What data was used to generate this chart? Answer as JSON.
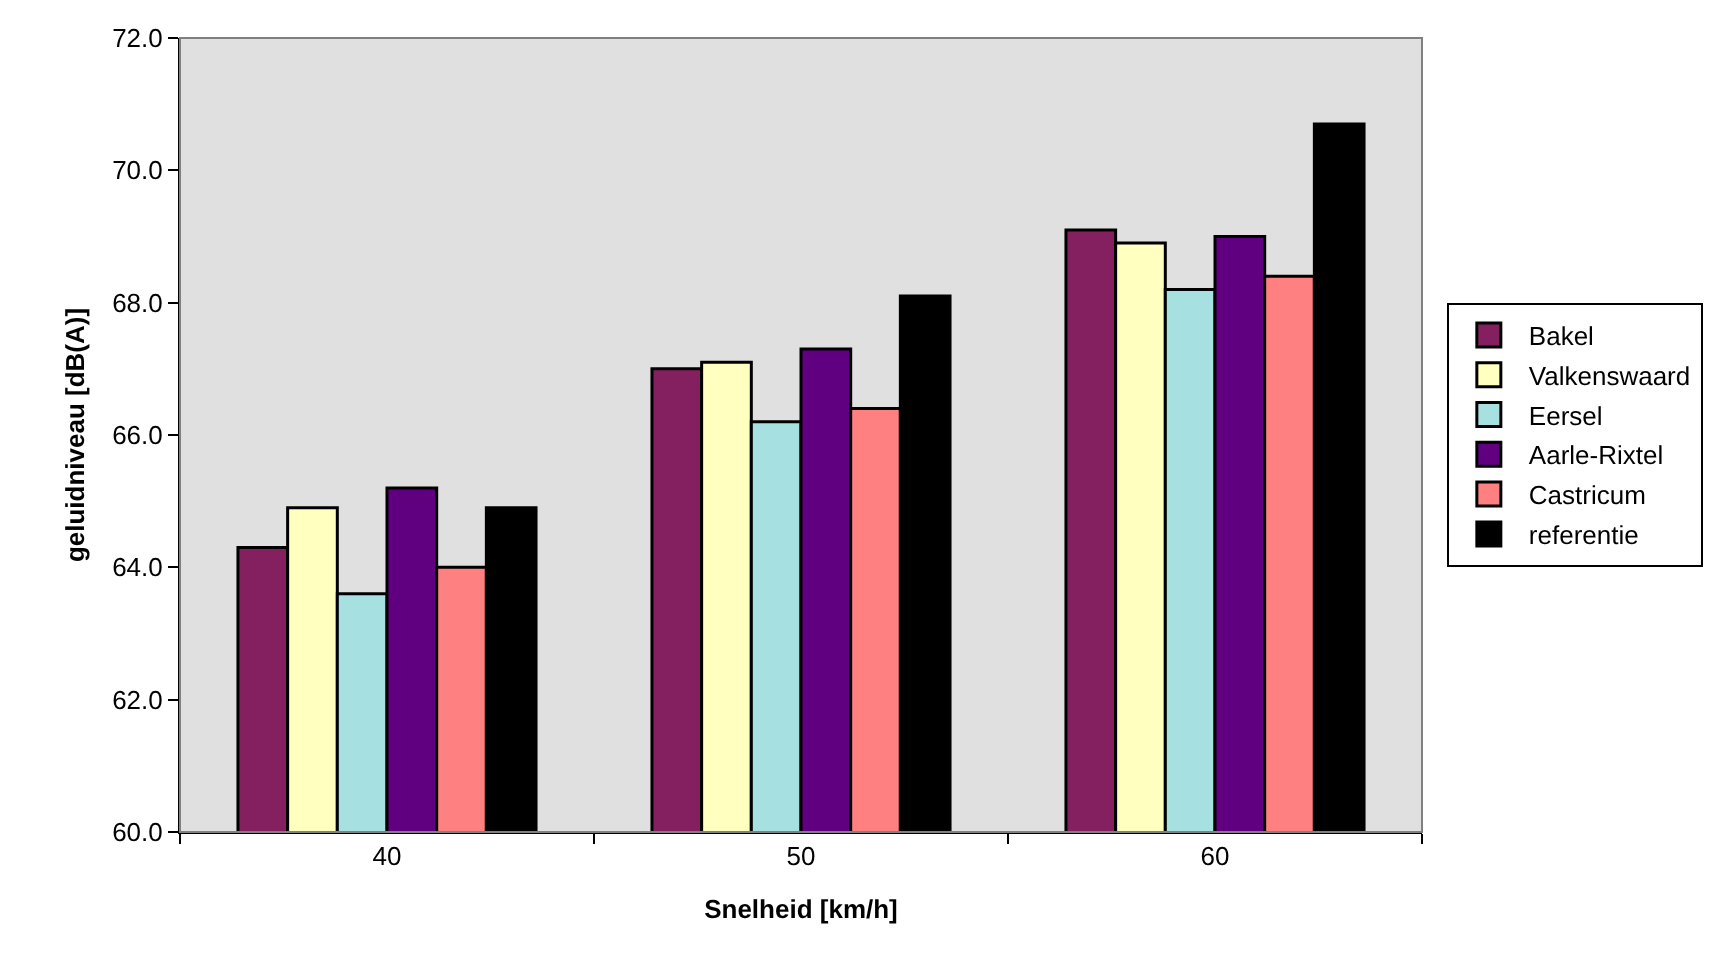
{
  "chart_data": {
    "type": "bar",
    "xlabel": "Snelheid [km/h]",
    "ylabel": "geluidniveau [dB(A)]",
    "categories": [
      "40",
      "50",
      "60"
    ],
    "series": [
      {
        "name": "Bakel",
        "color": "#852060",
        "values": [
          64.3,
          67.0,
          69.1
        ]
      },
      {
        "name": "Valkenswaard",
        "color": "#ffffc0",
        "values": [
          64.9,
          67.1,
          68.9
        ]
      },
      {
        "name": "Eersel",
        "color": "#a6e0e0",
        "values": [
          63.6,
          66.2,
          68.2
        ]
      },
      {
        "name": "Aarle-Rixtel",
        "color": "#600080",
        "values": [
          65.2,
          67.3,
          69.0
        ]
      },
      {
        "name": "Castricum",
        "color": "#ff8080",
        "values": [
          64.0,
          66.4,
          68.4
        ]
      },
      {
        "name": "referentie",
        "color": "#000000",
        "values": [
          64.9,
          68.1,
          70.7
        ]
      }
    ],
    "ylim": [
      60,
      72
    ],
    "yticks": [
      {
        "value": 60,
        "label": "60.0"
      },
      {
        "value": 62,
        "label": "62.0"
      },
      {
        "value": 64,
        "label": "64.0"
      },
      {
        "value": 66,
        "label": "66.0"
      },
      {
        "value": 68,
        "label": "68.0"
      },
      {
        "value": 70,
        "label": "70.0"
      },
      {
        "value": 72,
        "label": "72.0"
      }
    ],
    "grid": false,
    "legend": "right"
  }
}
